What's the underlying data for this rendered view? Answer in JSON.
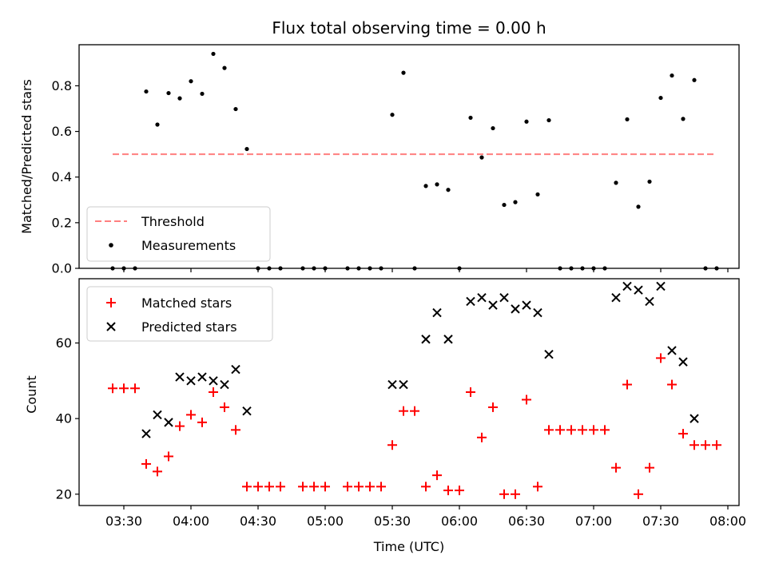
{
  "chart_data": [
    {
      "type": "scatter",
      "title": "Flux total observing time = 0.00 h",
      "xlabel": "",
      "ylabel": "Matched/Predicted stars",
      "ylim": [
        0,
        0.98
      ],
      "yticks": [
        "0.0",
        "0.2",
        "0.4",
        "0.6",
        "0.8"
      ],
      "legend": "bottom-left",
      "threshold": {
        "name": "Threshold",
        "value": 0.5,
        "x_start": "03:25",
        "x_end": "07:55",
        "color": "#ff7f7f"
      },
      "series": [
        {
          "name": "Measurements",
          "color": "#000000",
          "points": [
            [
              "03:25",
              0.0
            ],
            [
              "03:30",
              0.0
            ],
            [
              "03:35",
              0.0
            ],
            [
              "03:40",
              0.775
            ],
            [
              "03:45",
              0.63
            ],
            [
              "03:50",
              0.768
            ],
            [
              "03:55",
              0.745
            ],
            [
              "04:00",
              0.82
            ],
            [
              "04:05",
              0.765
            ],
            [
              "04:10",
              0.94
            ],
            [
              "04:15",
              0.878
            ],
            [
              "04:20",
              0.698
            ],
            [
              "04:25",
              0.523
            ],
            [
              "04:30",
              0.0
            ],
            [
              "04:35",
              0.0
            ],
            [
              "04:40",
              0.0
            ],
            [
              "04:50",
              0.0
            ],
            [
              "04:55",
              0.0
            ],
            [
              "05:00",
              0.0
            ],
            [
              "05:10",
              0.0
            ],
            [
              "05:15",
              0.0
            ],
            [
              "05:20",
              0.0
            ],
            [
              "05:25",
              0.0
            ],
            [
              "05:30",
              0.673
            ],
            [
              "05:35",
              0.857
            ],
            [
              "05:40",
              0.0
            ],
            [
              "05:45",
              0.361
            ],
            [
              "05:50",
              0.368
            ],
            [
              "05:55",
              0.344
            ],
            [
              "06:00",
              0.0
            ],
            [
              "06:05",
              0.66
            ],
            [
              "06:10",
              0.486
            ],
            [
              "06:15",
              0.614
            ],
            [
              "06:20",
              0.278
            ],
            [
              "06:25",
              0.29
            ],
            [
              "06:30",
              0.643
            ],
            [
              "06:35",
              0.324
            ],
            [
              "06:40",
              0.649
            ],
            [
              "06:45",
              0.0
            ],
            [
              "06:50",
              0.0
            ],
            [
              "06:55",
              0.0
            ],
            [
              "07:00",
              0.0
            ],
            [
              "07:05",
              0.0
            ],
            [
              "07:10",
              0.375
            ],
            [
              "07:15",
              0.653
            ],
            [
              "07:20",
              0.27
            ],
            [
              "07:25",
              0.38
            ],
            [
              "07:30",
              0.747
            ],
            [
              "07:35",
              0.845
            ],
            [
              "07:40",
              0.655
            ],
            [
              "07:45",
              0.825
            ],
            [
              "07:50",
              0.0
            ],
            [
              "07:55",
              0.0
            ]
          ]
        }
      ]
    },
    {
      "type": "scatter",
      "title": "",
      "xlabel": "Time (UTC)",
      "ylabel": "Count",
      "ylim": [
        17,
        77
      ],
      "yticks": [
        "20",
        "40",
        "60"
      ],
      "xlim": [
        "03:10",
        "08:05"
      ],
      "xticks": [
        "03:30",
        "04:00",
        "04:30",
        "05:00",
        "05:30",
        "06:00",
        "06:30",
        "07:00",
        "07:30",
        "08:00"
      ],
      "legend": "top-left",
      "series": [
        {
          "name": "Matched stars",
          "color": "#ff0000",
          "points": [
            [
              "03:25",
              48
            ],
            [
              "03:30",
              48
            ],
            [
              "03:35",
              48
            ],
            [
              "03:40",
              28
            ],
            [
              "03:45",
              26
            ],
            [
              "03:50",
              30
            ],
            [
              "03:55",
              38
            ],
            [
              "04:00",
              41
            ],
            [
              "04:05",
              39
            ],
            [
              "04:10",
              47
            ],
            [
              "04:15",
              43
            ],
            [
              "04:20",
              37
            ],
            [
              "04:25",
              22
            ],
            [
              "04:30",
              22
            ],
            [
              "04:35",
              22
            ],
            [
              "04:40",
              22
            ],
            [
              "04:50",
              22
            ],
            [
              "04:55",
              22
            ],
            [
              "05:00",
              22
            ],
            [
              "05:10",
              22
            ],
            [
              "05:15",
              22
            ],
            [
              "05:20",
              22
            ],
            [
              "05:25",
              22
            ],
            [
              "05:30",
              33
            ],
            [
              "05:35",
              42
            ],
            [
              "05:40",
              42
            ],
            [
              "05:45",
              22
            ],
            [
              "05:50",
              25
            ],
            [
              "05:55",
              21
            ],
            [
              "06:00",
              21
            ],
            [
              "06:05",
              47
            ],
            [
              "06:10",
              35
            ],
            [
              "06:15",
              43
            ],
            [
              "06:20",
              20
            ],
            [
              "06:25",
              20
            ],
            [
              "06:30",
              45
            ],
            [
              "06:35",
              22
            ],
            [
              "06:40",
              37
            ],
            [
              "06:45",
              37
            ],
            [
              "06:50",
              37
            ],
            [
              "06:55",
              37
            ],
            [
              "07:00",
              37
            ],
            [
              "07:05",
              37
            ],
            [
              "07:10",
              27
            ],
            [
              "07:15",
              49
            ],
            [
              "07:20",
              20
            ],
            [
              "07:25",
              27
            ],
            [
              "07:30",
              56
            ],
            [
              "07:35",
              49
            ],
            [
              "07:40",
              36
            ],
            [
              "07:45",
              33
            ],
            [
              "07:50",
              33
            ],
            [
              "07:55",
              33
            ]
          ]
        },
        {
          "name": "Predicted stars",
          "color": "#000000",
          "points": [
            [
              "03:40",
              36
            ],
            [
              "03:45",
              41
            ],
            [
              "03:50",
              39
            ],
            [
              "03:55",
              51
            ],
            [
              "04:00",
              50
            ],
            [
              "04:05",
              51
            ],
            [
              "04:10",
              50
            ],
            [
              "04:15",
              49
            ],
            [
              "04:20",
              53
            ],
            [
              "04:25",
              42
            ],
            [
              "05:30",
              49
            ],
            [
              "05:35",
              49
            ],
            [
              "05:45",
              61
            ],
            [
              "05:50",
              68
            ],
            [
              "05:55",
              61
            ],
            [
              "06:05",
              71
            ],
            [
              "06:10",
              72
            ],
            [
              "06:15",
              70
            ],
            [
              "06:20",
              72
            ],
            [
              "06:25",
              69
            ],
            [
              "06:30",
              70
            ],
            [
              "06:35",
              68
            ],
            [
              "06:40",
              57
            ],
            [
              "07:10",
              72
            ],
            [
              "07:15",
              75
            ],
            [
              "07:20",
              74
            ],
            [
              "07:25",
              71
            ],
            [
              "07:30",
              75
            ],
            [
              "07:35",
              58
            ],
            [
              "07:40",
              55
            ],
            [
              "07:45",
              40
            ]
          ]
        }
      ]
    }
  ]
}
